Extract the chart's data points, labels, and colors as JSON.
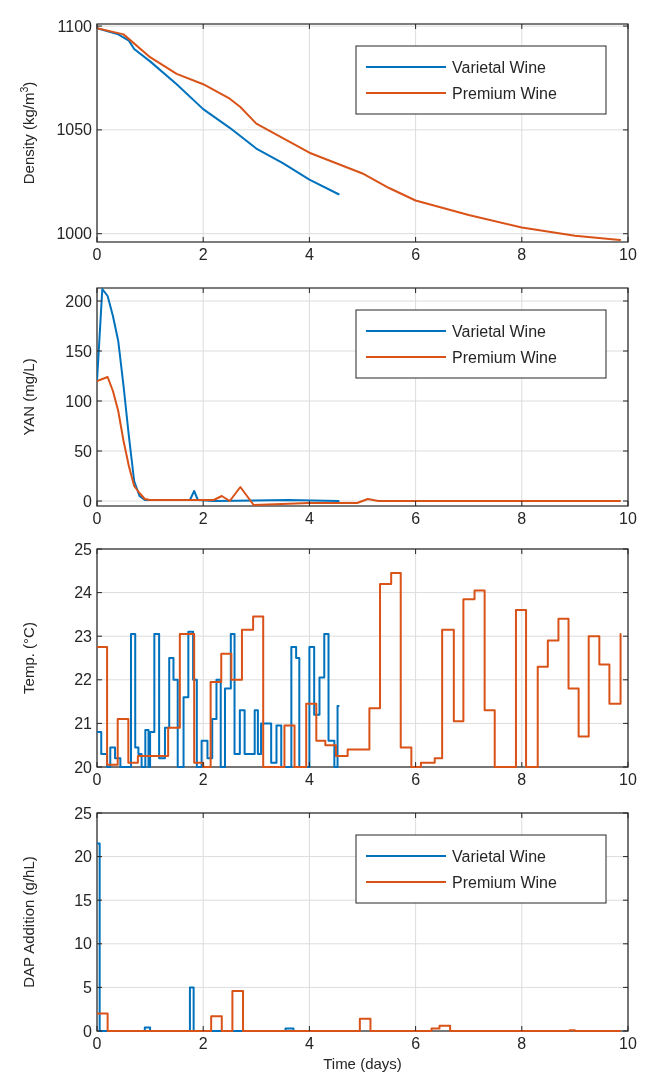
{
  "chart_data": [
    {
      "type": "line",
      "ylabel": "Density (kg/m$^{3}$)",
      "xlim": [
        0,
        10
      ],
      "xticks": [
        0,
        2,
        4,
        6,
        8,
        10
      ],
      "ylim": [
        996,
        1101
      ],
      "yticks": [
        1000,
        1050,
        1100
      ],
      "grid": true,
      "legend": "top right",
      "series": [
        {
          "name": "Varietal Wine",
          "color": "#0072bd",
          "x": [
            0,
            0.4,
            0.6,
            0.7,
            1,
            1.5,
            2,
            2.5,
            3,
            3.5,
            4,
            4.55
          ],
          "values": [
            1099,
            1096,
            1093,
            1089,
            1083,
            1072,
            1060,
            1051,
            1041,
            1034,
            1026,
            1019
          ]
        },
        {
          "name": "Premium Wine",
          "color": "#d95319",
          "x": [
            0,
            0.5,
            1,
            1.5,
            2,
            2.5,
            2.7,
            3,
            3.5,
            4,
            5,
            5.5,
            6,
            7,
            8,
            9,
            9.85
          ],
          "values": [
            1099,
            1096,
            1085,
            1077,
            1072,
            1065,
            1061,
            1053,
            1046,
            1039,
            1029,
            1022,
            1016,
            1009,
            1003,
            999,
            997
          ]
        }
      ]
    },
    {
      "type": "line",
      "ylabel": "YAN (mg/L)",
      "xlim": [
        0,
        10
      ],
      "xticks": [
        0,
        2,
        4,
        6,
        8,
        10
      ],
      "ylim": [
        -5,
        213
      ],
      "yticks": [
        0,
        50,
        100,
        150,
        200
      ],
      "grid": true,
      "legend": "top right",
      "series": [
        {
          "name": "Varietal Wine",
          "color": "#0072bd",
          "x": [
            0,
            0.1,
            0.2,
            0.3,
            0.4,
            0.5,
            0.6,
            0.7,
            0.8,
            0.9,
            1,
            1.75,
            1.83,
            1.9,
            2.2,
            3.6,
            4.55
          ],
          "values": [
            120,
            212,
            205,
            185,
            160,
            115,
            65,
            20,
            5,
            1,
            1,
            1,
            10,
            1,
            0,
            1,
            0
          ]
        },
        {
          "name": "Premium Wine",
          "color": "#d95319",
          "x": [
            0,
            0.2,
            0.3,
            0.4,
            0.5,
            0.6,
            0.7,
            0.8,
            0.9,
            1,
            2.2,
            2.35,
            2.5,
            2.7,
            2.95,
            4,
            4.9,
            5.1,
            5.3,
            6,
            9.85
          ],
          "values": [
            120,
            124,
            110,
            90,
            60,
            35,
            15,
            8,
            2,
            1,
            1,
            5,
            0,
            14,
            -4,
            -2,
            -2,
            2,
            0,
            0,
            0
          ]
        }
      ]
    },
    {
      "type": "step",
      "ylabel": "Temp. (°C)",
      "xlim": [
        0,
        10
      ],
      "xticks": [
        0,
        2,
        4,
        6,
        8,
        10
      ],
      "ylim": [
        20,
        25
      ],
      "yticks": [
        20,
        21,
        22,
        23,
        24,
        25
      ],
      "grid": true,
      "series": [
        {
          "color": "#0072bd",
          "x": [
            0,
            0.08,
            0.19,
            0.25,
            0.34,
            0.44,
            0.64,
            0.72,
            0.78,
            0.84,
            0.91,
            0.97,
            1.0,
            1.08,
            1.17,
            1.28,
            1.36,
            1.44,
            1.52,
            1.63,
            1.72,
            1.81,
            1.88,
            1.97,
            2.08,
            2.17,
            2.25,
            2.33,
            2.41,
            2.52,
            2.59,
            2.69,
            2.78,
            2.97,
            3.03,
            3.09,
            3.28,
            3.38,
            3.47,
            3.66,
            3.75,
            3.81,
            4.0,
            4.09,
            4.19,
            4.28,
            4.36,
            4.47,
            4.53,
            4.55
          ],
          "values": [
            20.8,
            20.3,
            20.0,
            20.45,
            20.2,
            20.0,
            23.05,
            20.45,
            20.3,
            20.0,
            20.85,
            20.0,
            20.8,
            23.05,
            20.2,
            20.9,
            22.5,
            22.0,
            20.0,
            21.6,
            23.1,
            22.0,
            20.0,
            20.6,
            20.2,
            21.1,
            22.0,
            20.0,
            21.8,
            23.05,
            20.3,
            21.3,
            20.3,
            21.3,
            20.3,
            21.0,
            20.1,
            20.95,
            20.0,
            22.75,
            22.5,
            20.0,
            22.75,
            21.2,
            22.05,
            23.05,
            20.6,
            20.0,
            21.4,
            21.4
          ]
        },
        {
          "color": "#d95319",
          "x": [
            0,
            0.19,
            0.39,
            0.59,
            0.77,
            1.34,
            1.56,
            1.83,
            2.0,
            2.14,
            2.34,
            2.53,
            2.73,
            2.94,
            3.13,
            3.53,
            3.72,
            3.94,
            4.13,
            4.3,
            4.5,
            4.72,
            5.13,
            5.33,
            5.54,
            5.72,
            5.92,
            6.1,
            6.36,
            6.5,
            6.72,
            6.9,
            7.11,
            7.3,
            7.49,
            7.89,
            8.08,
            8.3,
            8.49,
            8.69,
            8.88,
            9.07,
            9.26,
            9.46,
            9.65,
            9.86
          ],
          "values": [
            22.75,
            20.05,
            21.1,
            20.1,
            20.25,
            20.9,
            23.05,
            20.1,
            20.0,
            21.95,
            22.6,
            22.0,
            23.15,
            23.45,
            20.0,
            20.95,
            20.0,
            21.45,
            20.6,
            20.5,
            20.25,
            20.4,
            21.35,
            24.2,
            24.45,
            20.45,
            20.0,
            20.1,
            20.2,
            23.15,
            21.05,
            23.85,
            24.05,
            21.3,
            20.0,
            23.6,
            20.0,
            22.3,
            22.9,
            23.4,
            21.8,
            20.7,
            23.0,
            22.35,
            21.45,
            23.05
          ]
        }
      ]
    },
    {
      "type": "step",
      "xlabel": "Time (days)",
      "ylabel": "DAP Addition (g/hL)",
      "xlim": [
        0,
        10
      ],
      "xticks": [
        0,
        2,
        4,
        6,
        8,
        10
      ],
      "ylim": [
        0,
        25
      ],
      "yticks": [
        0,
        5,
        10,
        15,
        20,
        25
      ],
      "grid": true,
      "legend": "top right",
      "series": [
        {
          "name": "Varietal Wine",
          "color": "#0072bd",
          "x": [
            0,
            0.05,
            0.9,
            1.0,
            1.75,
            1.82,
            3.55,
            3.7,
            4.55
          ],
          "values": [
            21.5,
            0,
            0.4,
            0,
            5,
            0,
            0.3,
            0,
            0
          ]
        },
        {
          "name": "Premium Wine",
          "color": "#d95319",
          "x": [
            0,
            0.2,
            2.15,
            2.35,
            2.55,
            2.75,
            4.95,
            5.15,
            6.3,
            6.45,
            6.65,
            8.9,
            9.0,
            9.85
          ],
          "values": [
            2,
            0,
            1.7,
            0,
            4.6,
            0,
            1.4,
            0,
            0.3,
            0.6,
            0,
            0.1,
            0,
            0
          ]
        }
      ]
    }
  ]
}
